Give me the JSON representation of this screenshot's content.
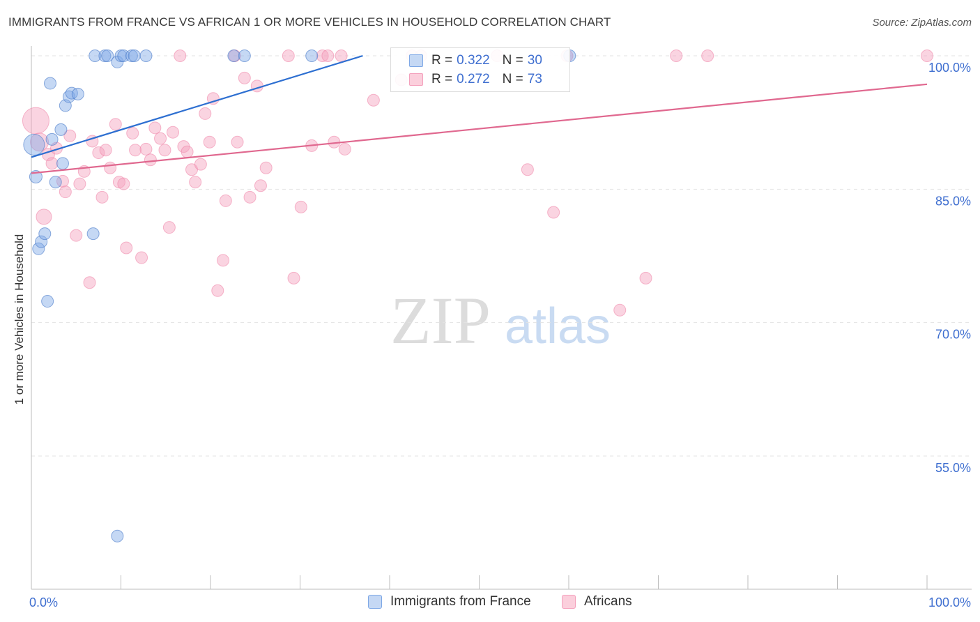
{
  "title": "IMMIGRANTS FROM FRANCE VS AFRICAN 1 OR MORE VEHICLES IN HOUSEHOLD CORRELATION CHART",
  "source": "Source: ZipAtlas.com",
  "watermark": {
    "zip": "ZIP",
    "atlas": "atlas"
  },
  "legend": {
    "series1": {
      "r_label": "R =",
      "r_value": "0.322",
      "n_label": "N =",
      "n_value": "30"
    },
    "series2": {
      "r_label": "R =",
      "r_value": "0.272",
      "n_label": "N =",
      "n_value": "73"
    }
  },
  "bottom_legend": {
    "series1": "Immigrants from France",
    "series2": "Africans"
  },
  "chart_data": {
    "type": "scatter",
    "xlabel": "",
    "ylabel": "1 or more Vehicles in Household",
    "xlim": [
      0,
      100
    ],
    "ylim": [
      40,
      100
    ],
    "x_tick_labels": [
      "0.0%",
      "100.0%"
    ],
    "y_tick_labels": [
      "100.0%",
      "85.0%",
      "70.0%",
      "55.0%"
    ],
    "y_ticks": [
      100,
      85,
      70,
      55
    ],
    "grid": true,
    "colors": {
      "series1": "#7ea8e6",
      "series2": "#f4a0bc",
      "line1": "#2d6fd1",
      "line2": "#e0688f",
      "axis_label": "#3f6fd0"
    },
    "series": [
      {
        "name": "Immigrants from France",
        "trend": {
          "x": [
            0,
            37
          ],
          "y": [
            88.6,
            100.0
          ]
        },
        "points": [
          {
            "x": 0.3,
            "y": 90.0,
            "s": 30
          },
          {
            "x": 0.5,
            "y": 86.4,
            "s": 18
          },
          {
            "x": 0.8,
            "y": 78.3,
            "s": 17
          },
          {
            "x": 1.1,
            "y": 79.1,
            "s": 17
          },
          {
            "x": 1.5,
            "y": 80.0,
            "s": 17
          },
          {
            "x": 1.8,
            "y": 72.4,
            "s": 17
          },
          {
            "x": 2.1,
            "y": 96.9,
            "s": 17
          },
          {
            "x": 2.3,
            "y": 90.6,
            "s": 17
          },
          {
            "x": 2.7,
            "y": 85.8,
            "s": 17
          },
          {
            "x": 3.3,
            "y": 91.7,
            "s": 17
          },
          {
            "x": 3.5,
            "y": 87.9,
            "s": 17
          },
          {
            "x": 3.8,
            "y": 94.4,
            "s": 17
          },
          {
            "x": 4.2,
            "y": 95.4,
            "s": 17
          },
          {
            "x": 4.5,
            "y": 95.8,
            "s": 17
          },
          {
            "x": 5.2,
            "y": 95.7,
            "s": 17
          },
          {
            "x": 6.9,
            "y": 80.0,
            "s": 17
          },
          {
            "x": 7.1,
            "y": 100.0,
            "s": 17
          },
          {
            "x": 8.2,
            "y": 100.0,
            "s": 17
          },
          {
            "x": 8.5,
            "y": 100.0,
            "s": 17
          },
          {
            "x": 9.6,
            "y": 46.0,
            "s": 17
          },
          {
            "x": 9.6,
            "y": 99.3,
            "s": 17
          },
          {
            "x": 10.0,
            "y": 100.0,
            "s": 17
          },
          {
            "x": 10.3,
            "y": 100.0,
            "s": 17
          },
          {
            "x": 11.2,
            "y": 100.0,
            "s": 17
          },
          {
            "x": 11.5,
            "y": 100.0,
            "s": 17
          },
          {
            "x": 12.8,
            "y": 100.0,
            "s": 17
          },
          {
            "x": 22.6,
            "y": 100.0,
            "s": 17
          },
          {
            "x": 23.8,
            "y": 100.0,
            "s": 17
          },
          {
            "x": 31.3,
            "y": 100.0,
            "s": 17
          },
          {
            "x": 60.1,
            "y": 100.0,
            "s": 17
          }
        ]
      },
      {
        "name": "Africans",
        "trend": {
          "x": [
            0,
            100
          ],
          "y": [
            86.8,
            96.8
          ]
        },
        "points": [
          {
            "x": 0.5,
            "y": 92.7,
            "s": 38
          },
          {
            "x": 0.9,
            "y": 90.3,
            "s": 26
          },
          {
            "x": 1.4,
            "y": 81.9,
            "s": 22
          },
          {
            "x": 1.9,
            "y": 88.9,
            "s": 18
          },
          {
            "x": 2.3,
            "y": 87.9,
            "s": 17
          },
          {
            "x": 2.8,
            "y": 89.6,
            "s": 17
          },
          {
            "x": 3.5,
            "y": 85.9,
            "s": 17
          },
          {
            "x": 3.8,
            "y": 84.7,
            "s": 17
          },
          {
            "x": 4.3,
            "y": 91.0,
            "s": 17
          },
          {
            "x": 5.0,
            "y": 79.8,
            "s": 17
          },
          {
            "x": 5.4,
            "y": 85.6,
            "s": 17
          },
          {
            "x": 5.9,
            "y": 87.0,
            "s": 17
          },
          {
            "x": 6.5,
            "y": 74.5,
            "s": 17
          },
          {
            "x": 6.8,
            "y": 90.4,
            "s": 17
          },
          {
            "x": 7.5,
            "y": 89.1,
            "s": 17
          },
          {
            "x": 7.9,
            "y": 84.1,
            "s": 17
          },
          {
            "x": 8.3,
            "y": 89.4,
            "s": 17
          },
          {
            "x": 8.8,
            "y": 87.4,
            "s": 17
          },
          {
            "x": 9.4,
            "y": 92.3,
            "s": 17
          },
          {
            "x": 9.8,
            "y": 85.8,
            "s": 17
          },
          {
            "x": 10.3,
            "y": 85.6,
            "s": 17
          },
          {
            "x": 10.6,
            "y": 78.4,
            "s": 17
          },
          {
            "x": 11.3,
            "y": 91.3,
            "s": 17
          },
          {
            "x": 11.6,
            "y": 89.4,
            "s": 17
          },
          {
            "x": 12.3,
            "y": 77.3,
            "s": 17
          },
          {
            "x": 12.8,
            "y": 89.5,
            "s": 17
          },
          {
            "x": 13.3,
            "y": 88.3,
            "s": 17
          },
          {
            "x": 13.8,
            "y": 91.9,
            "s": 17
          },
          {
            "x": 14.4,
            "y": 90.7,
            "s": 17
          },
          {
            "x": 14.9,
            "y": 89.4,
            "s": 17
          },
          {
            "x": 15.4,
            "y": 80.7,
            "s": 17
          },
          {
            "x": 15.8,
            "y": 91.4,
            "s": 17
          },
          {
            "x": 16.6,
            "y": 100.0,
            "s": 17
          },
          {
            "x": 17.0,
            "y": 89.8,
            "s": 17
          },
          {
            "x": 17.4,
            "y": 89.2,
            "s": 17
          },
          {
            "x": 17.9,
            "y": 87.2,
            "s": 17
          },
          {
            "x": 18.3,
            "y": 85.8,
            "s": 17
          },
          {
            "x": 18.9,
            "y": 87.8,
            "s": 17
          },
          {
            "x": 19.4,
            "y": 93.5,
            "s": 17
          },
          {
            "x": 19.9,
            "y": 90.3,
            "s": 17
          },
          {
            "x": 20.3,
            "y": 95.2,
            "s": 17
          },
          {
            "x": 20.8,
            "y": 73.6,
            "s": 17
          },
          {
            "x": 21.4,
            "y": 77.0,
            "s": 17
          },
          {
            "x": 21.7,
            "y": 83.7,
            "s": 17
          },
          {
            "x": 22.7,
            "y": 100.0,
            "s": 17
          },
          {
            "x": 23.0,
            "y": 90.3,
            "s": 17
          },
          {
            "x": 23.8,
            "y": 97.5,
            "s": 17
          },
          {
            "x": 24.4,
            "y": 84.1,
            "s": 17
          },
          {
            "x": 25.2,
            "y": 96.6,
            "s": 17
          },
          {
            "x": 25.6,
            "y": 85.4,
            "s": 17
          },
          {
            "x": 26.2,
            "y": 87.4,
            "s": 17
          },
          {
            "x": 28.7,
            "y": 100.0,
            "s": 17
          },
          {
            "x": 29.3,
            "y": 75.0,
            "s": 17
          },
          {
            "x": 30.1,
            "y": 83.0,
            "s": 17
          },
          {
            "x": 31.3,
            "y": 89.9,
            "s": 17
          },
          {
            "x": 32.5,
            "y": 100.0,
            "s": 17
          },
          {
            "x": 33.1,
            "y": 100.0,
            "s": 17
          },
          {
            "x": 33.8,
            "y": 90.3,
            "s": 17
          },
          {
            "x": 34.6,
            "y": 100.0,
            "s": 17
          },
          {
            "x": 35.0,
            "y": 89.5,
            "s": 17
          },
          {
            "x": 38.2,
            "y": 95.0,
            "s": 17
          },
          {
            "x": 41.3,
            "y": 97.3,
            "s": 17
          },
          {
            "x": 42.5,
            "y": 100.0,
            "s": 17
          },
          {
            "x": 43.5,
            "y": 100.0,
            "s": 17
          },
          {
            "x": 52.0,
            "y": 100.0,
            "s": 17
          },
          {
            "x": 55.4,
            "y": 87.2,
            "s": 17
          },
          {
            "x": 58.3,
            "y": 82.4,
            "s": 17
          },
          {
            "x": 59.8,
            "y": 100.0,
            "s": 17
          },
          {
            "x": 65.7,
            "y": 71.4,
            "s": 17
          },
          {
            "x": 68.6,
            "y": 75.0,
            "s": 17
          },
          {
            "x": 72.0,
            "y": 100.0,
            "s": 17
          },
          {
            "x": 75.5,
            "y": 100.0,
            "s": 17
          },
          {
            "x": 100.0,
            "y": 100.0,
            "s": 17
          }
        ]
      }
    ]
  }
}
